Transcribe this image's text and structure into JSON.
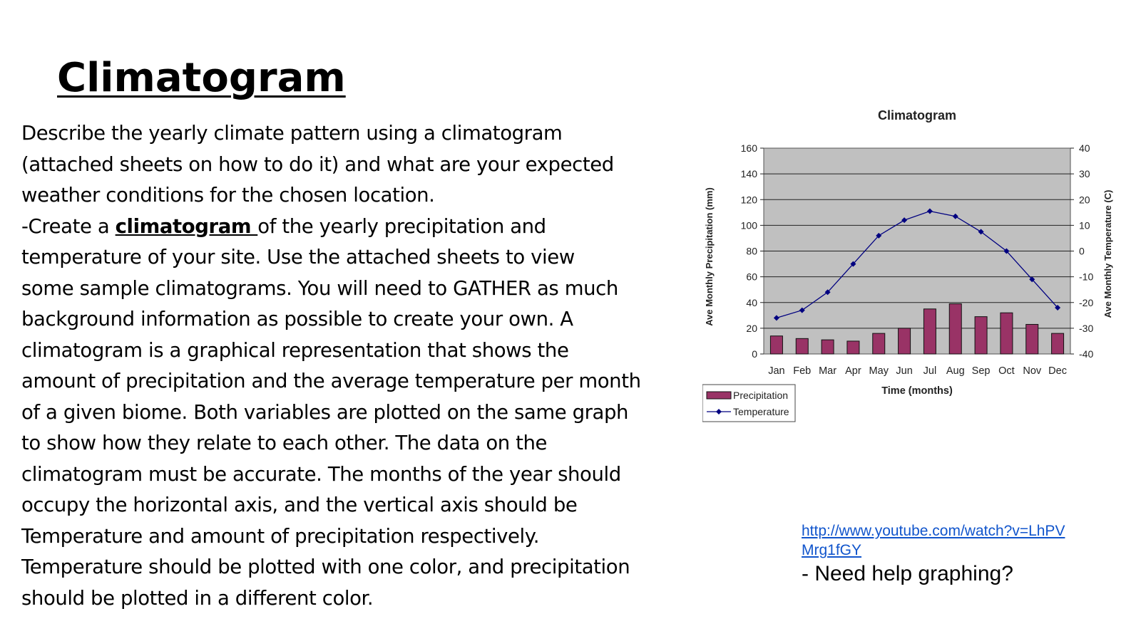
{
  "slide": {
    "title": "Climatogram",
    "paragraph": {
      "l1": "Describe the yearly climate pattern using a climatogram",
      "l2": "(attached sheets on how to do it) and what are your expected",
      "l3": "weather conditions for the chosen location.",
      "l4_pre": "-Create a ",
      "l4_kw": "climatogram ",
      "l4_post": "of the yearly precipitation and",
      "l5": "temperature of your site. Use the attached sheets to view",
      "l6": "some sample climatograms. You will need to GATHER as much",
      "l7": "background information as possible to create your own. A",
      "l8": "climatogram is a graphical representation that shows the",
      "l9": "amount of precipitation and the average temperature per month",
      "l10": "of a given biome. Both variables are plotted on the same graph",
      "l11": "to show how they relate to each other. The data on the",
      "l12": "climatogram must be accurate. The months of the year should",
      "l13": "occupy the horizontal axis, and the vertical axis should be",
      "l14": "Temperature and amount of precipitation respectively.",
      "l15": "Temperature should be plotted with one color, and precipitation",
      "l16": "should be plotted in a different color."
    },
    "help": {
      "link": "http://www.youtube.com/watch?v=LhPVMrg1fGY",
      "caption": "- Need help graphing?"
    }
  },
  "chart_data": {
    "type": "bar",
    "title": "Climatogram",
    "xlabel": "Time (months)",
    "ylabel": "Ave Monthly Precipitation (mm)",
    "y2label": "Ave Monthly Temperature (C)",
    "categories": [
      "Jan",
      "Feb",
      "Mar",
      "Apr",
      "May",
      "Jun",
      "Jul",
      "Aug",
      "Sep",
      "Oct",
      "Nov",
      "Dec"
    ],
    "ylim": [
      0,
      160
    ],
    "yticks": [
      "0",
      "20",
      "40",
      "60",
      "80",
      "100",
      "120",
      "140",
      "160"
    ],
    "y2lim": [
      -40,
      40
    ],
    "y2ticks": [
      "-40",
      "-30",
      "-20",
      "-10",
      "0",
      "10",
      "20",
      "30",
      "40"
    ],
    "grid": true,
    "legend_position": "bottom-left",
    "series": [
      {
        "name": "Precipitation",
        "type": "bar",
        "axis": "left",
        "color": "#993366",
        "values": [
          14,
          12,
          11,
          10,
          16,
          20,
          35,
          39,
          29,
          32,
          23,
          16
        ]
      },
      {
        "name": "Temperature",
        "type": "line",
        "axis": "right",
        "color": "#000080",
        "values": [
          -26,
          -23,
          -16,
          -5,
          6,
          12,
          15.5,
          13.5,
          7.5,
          0,
          -11,
          -22
        ]
      }
    ],
    "plot_background": "#c0c0c0"
  }
}
